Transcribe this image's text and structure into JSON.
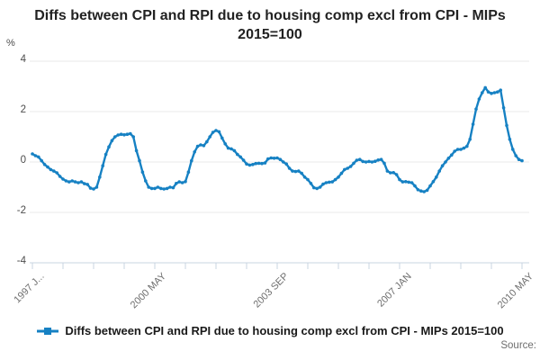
{
  "title": "Diffs between CPI and RPI due to housing comp excl from CPI - MIPs 2015=100",
  "y_axis_unit": "%",
  "source_label": "Source:",
  "legend": {
    "label": "Diffs between CPI and RPI due to housing comp excl from CPI - MIPs 2015=100"
  },
  "chart_data": {
    "type": "line",
    "title": "Diffs between CPI and RPI due to housing comp excl from CPI - MIPs 2015=100",
    "xlabel": "",
    "ylabel": "%",
    "ylim": [
      -4,
      4
    ],
    "yticks": [
      4,
      2,
      0,
      -2,
      -4
    ],
    "grid": "horizontal",
    "legend_position": "bottom",
    "line_color": "#1681c3",
    "x_unit": "month",
    "x_start": "1997 JAN",
    "x_end": "2010 MAY",
    "xticks_total": 17,
    "xtick_label_every": 4,
    "xtick_labels": [
      "1997 J...",
      "2000 MAY",
      "2003 SEP",
      "2007 JAN",
      "2010 MAY"
    ],
    "series": [
      {
        "name": "Diffs between CPI and RPI due to housing comp excl from CPI - MIPs 2015=100",
        "values": [
          0.32,
          0.25,
          0.2,
          0.05,
          -0.1,
          -0.2,
          -0.3,
          -0.36,
          -0.43,
          -0.57,
          -0.68,
          -0.75,
          -0.79,
          -0.75,
          -0.79,
          -0.82,
          -0.79,
          -0.86,
          -0.89,
          -1.04,
          -1.07,
          -1.0,
          -0.6,
          -0.15,
          0.3,
          0.6,
          0.85,
          1.0,
          1.07,
          1.1,
          1.08,
          1.1,
          1.12,
          1.0,
          0.45,
          0.05,
          -0.4,
          -0.75,
          -1.0,
          -1.05,
          -1.05,
          -1.0,
          -1.05,
          -1.07,
          -1.05,
          -1.0,
          -1.02,
          -0.85,
          -0.79,
          -0.82,
          -0.78,
          -0.4,
          0.05,
          0.4,
          0.62,
          0.68,
          0.65,
          0.8,
          1.0,
          1.18,
          1.25,
          1.2,
          0.95,
          0.72,
          0.55,
          0.52,
          0.45,
          0.3,
          0.2,
          0.07,
          -0.08,
          -0.12,
          -0.1,
          -0.06,
          -0.05,
          -0.06,
          -0.04,
          0.12,
          0.16,
          0.15,
          0.16,
          0.1,
          0.0,
          -0.08,
          -0.25,
          -0.36,
          -0.38,
          -0.36,
          -0.45,
          -0.6,
          -0.7,
          -0.85,
          -1.02,
          -1.05,
          -1.0,
          -0.88,
          -0.82,
          -0.8,
          -0.79,
          -0.7,
          -0.6,
          -0.45,
          -0.3,
          -0.25,
          -0.18,
          -0.05,
          0.07,
          0.1,
          0.02,
          0.0,
          0.02,
          0.0,
          0.03,
          0.08,
          0.1,
          -0.05,
          -0.36,
          -0.43,
          -0.42,
          -0.5,
          -0.7,
          -0.79,
          -0.78,
          -0.8,
          -0.82,
          -0.95,
          -1.1,
          -1.15,
          -1.18,
          -1.12,
          -0.95,
          -0.78,
          -0.6,
          -0.36,
          -0.15,
          0.0,
          0.15,
          0.28,
          0.43,
          0.5,
          0.5,
          0.55,
          0.62,
          0.9,
          1.5,
          2.1,
          2.5,
          2.75,
          2.95,
          2.78,
          2.72,
          2.75,
          2.78,
          2.85,
          2.15,
          1.45,
          0.9,
          0.5,
          0.25,
          0.1,
          0.05
        ]
      }
    ]
  }
}
